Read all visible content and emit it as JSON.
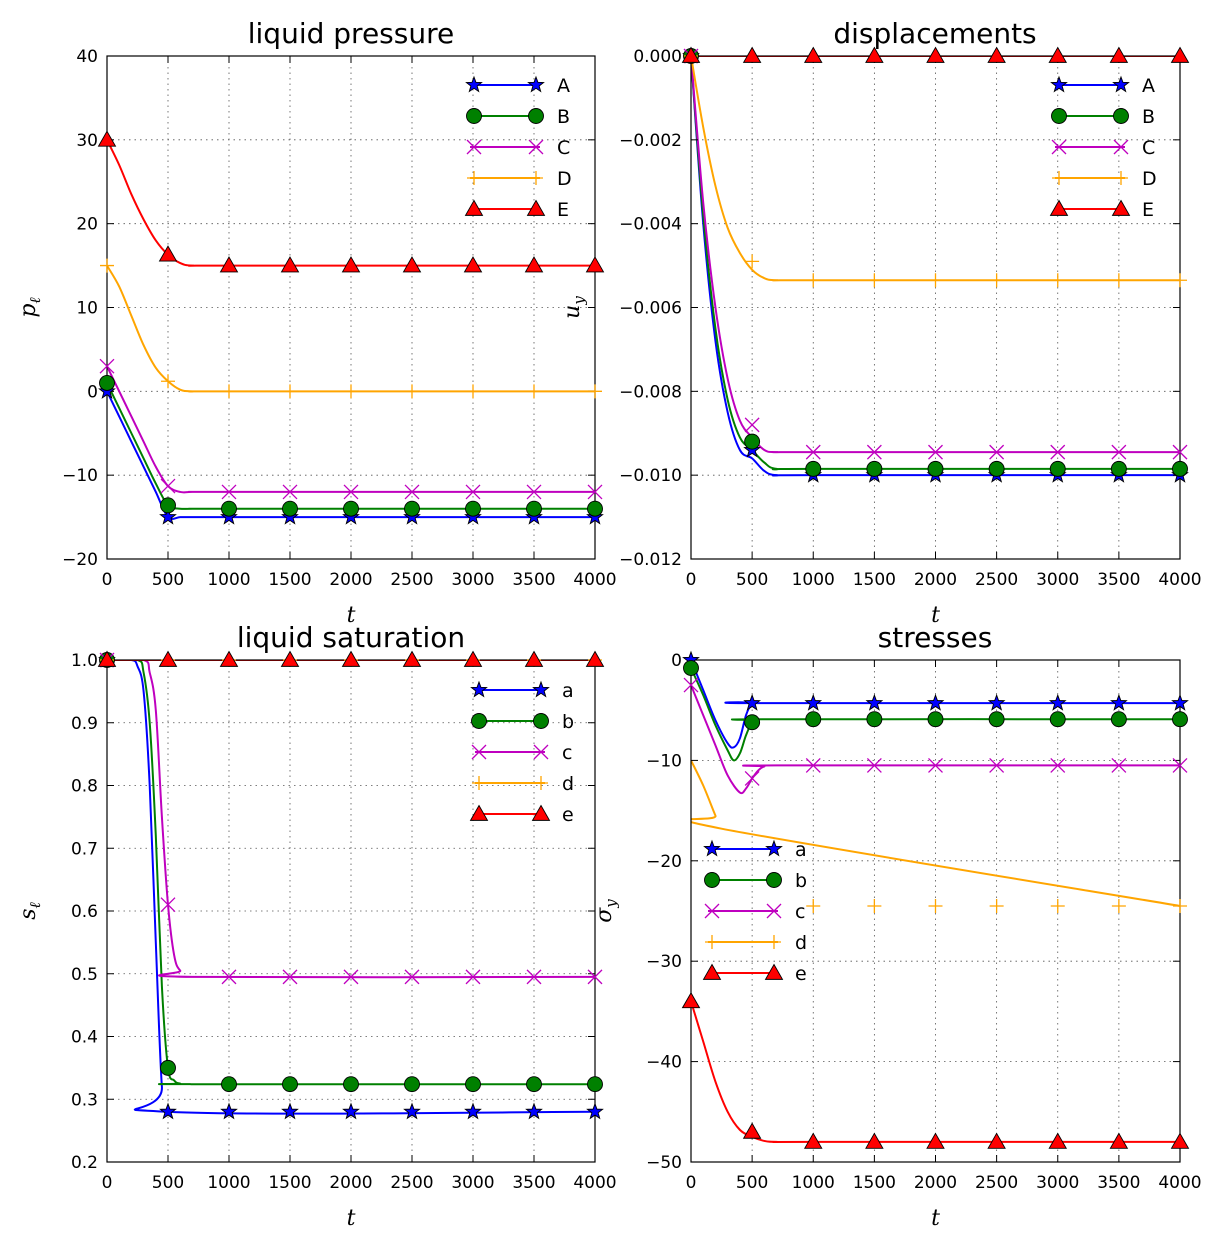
{
  "chart_data": [
    {
      "type": "line",
      "title": "liquid pressure",
      "xlabel": "t",
      "ylabel": "p",
      "ylabel_sub": "ℓ",
      "xlim": [
        0,
        4000
      ],
      "ylim": [
        -20,
        40
      ],
      "xticks": [
        0,
        500,
        1000,
        1500,
        2000,
        2500,
        3000,
        3500,
        4000
      ],
      "yticks": [
        -20,
        -10,
        0,
        10,
        20,
        30,
        40
      ],
      "ytick_labels": [
        "−20",
        "−10",
        "0",
        "10",
        "20",
        "30",
        "40"
      ],
      "grid": true,
      "legend_position": "upper-right",
      "series": [
        {
          "name": "A",
          "color": "#0000ff",
          "marker": "star",
          "x": [
            0,
            100,
            200,
            300,
            400,
            500,
            600,
            700,
            800,
            1000,
            4000
          ],
          "y": [
            0,
            -3,
            -6,
            -9,
            -12,
            -15,
            -15,
            -15,
            -15,
            -15,
            -15
          ],
          "marker_x": [
            0,
            500,
            1000,
            1500,
            2000,
            2500,
            3000,
            3500,
            4000
          ],
          "marker_y": [
            0,
            -15,
            -15,
            -15,
            -15,
            -15,
            -15,
            -15,
            -15
          ]
        },
        {
          "name": "B",
          "color": "#008000",
          "marker": "circle",
          "x": [
            0,
            100,
            200,
            300,
            400,
            500,
            600,
            700,
            1000,
            4000
          ],
          "y": [
            1,
            -2,
            -5,
            -8,
            -11,
            -13.6,
            -14,
            -14,
            -14,
            -14
          ],
          "marker_x": [
            0,
            500,
            1000,
            1500,
            2000,
            2500,
            3000,
            3500,
            4000
          ],
          "marker_y": [
            1,
            -13.6,
            -14,
            -14,
            -14,
            -14,
            -14,
            -14,
            -14
          ]
        },
        {
          "name": "C",
          "color": "#bf00bf",
          "marker": "x",
          "x": [
            0,
            100,
            200,
            300,
            400,
            500,
            600,
            700,
            1000,
            4000
          ],
          "y": [
            3,
            0,
            -3,
            -6,
            -9,
            -11.3,
            -12,
            -12,
            -12,
            -12
          ],
          "marker_x": [
            0,
            500,
            1000,
            1500,
            2000,
            2500,
            3000,
            3500,
            4000
          ],
          "marker_y": [
            3,
            -11.3,
            -12,
            -12,
            -12,
            -12,
            -12,
            -12,
            -12
          ]
        },
        {
          "name": "D",
          "color": "#ffa500",
          "marker": "plus",
          "x": [
            0,
            100,
            200,
            300,
            400,
            500,
            600,
            700,
            1000,
            4000
          ],
          "y": [
            15,
            12.5,
            9,
            5.5,
            2.8,
            1.2,
            0.2,
            0,
            0,
            0
          ],
          "marker_x": [
            0,
            500,
            1000,
            1500,
            2000,
            2500,
            3000,
            3500,
            4000
          ],
          "marker_y": [
            15,
            1.2,
            0,
            0,
            0,
            0,
            0,
            0,
            0
          ]
        },
        {
          "name": "E",
          "color": "#ff0000",
          "marker": "triangle",
          "x": [
            0,
            100,
            200,
            300,
            400,
            500,
            600,
            700,
            1000,
            4000
          ],
          "y": [
            30,
            27,
            23.5,
            20.5,
            18,
            16.3,
            15.3,
            15,
            15,
            15
          ],
          "marker_x": [
            0,
            500,
            1000,
            1500,
            2000,
            2500,
            3000,
            3500,
            4000
          ],
          "marker_y": [
            30,
            16.3,
            15,
            15,
            15,
            15,
            15,
            15,
            15
          ]
        }
      ]
    },
    {
      "type": "line",
      "title": "displacements",
      "xlabel": "t",
      "ylabel": "u",
      "ylabel_sub": "y",
      "xlim": [
        0,
        4000
      ],
      "ylim": [
        -0.012,
        0.0
      ],
      "xticks": [
        0,
        500,
        1000,
        1500,
        2000,
        2500,
        3000,
        3500,
        4000
      ],
      "yticks": [
        -0.012,
        -0.01,
        -0.008,
        -0.006,
        -0.004,
        -0.002,
        0.0
      ],
      "ytick_labels": [
        "−0.012",
        "−0.010",
        "−0.008",
        "−0.006",
        "−0.004",
        "−0.002",
        "0.000"
      ],
      "grid": true,
      "legend_position": "upper-right",
      "series": [
        {
          "name": "A",
          "color": "#0000ff",
          "marker": "star",
          "x": [
            0,
            100,
            200,
            300,
            400,
            500,
            600,
            700,
            1000,
            4000
          ],
          "y": [
            0,
            -0.004,
            -0.0068,
            -0.0085,
            -0.0094,
            -0.0096,
            -0.0099,
            -0.01,
            -0.01,
            -0.01
          ],
          "marker_x": [
            0,
            500,
            1000,
            1500,
            2000,
            2500,
            3000,
            3500,
            4000
          ],
          "marker_y": [
            0,
            -0.0094,
            -0.01,
            -0.01,
            -0.01,
            -0.01,
            -0.01,
            -0.01,
            -0.01
          ]
        },
        {
          "name": "B",
          "color": "#008000",
          "marker": "circle",
          "x": [
            0,
            100,
            200,
            300,
            400,
            500,
            600,
            700,
            1000,
            4000
          ],
          "y": [
            0,
            -0.0038,
            -0.0065,
            -0.0082,
            -0.0091,
            -0.0094,
            -0.0097,
            -0.00985,
            -0.00985,
            -0.00985
          ],
          "marker_x": [
            0,
            500,
            1000,
            1500,
            2000,
            2500,
            3000,
            3500,
            4000
          ],
          "marker_y": [
            0,
            -0.0092,
            -0.00985,
            -0.00985,
            -0.00985,
            -0.00985,
            -0.00985,
            -0.00985,
            -0.00985
          ]
        },
        {
          "name": "C",
          "color": "#bf00bf",
          "marker": "x",
          "x": [
            0,
            100,
            200,
            300,
            400,
            500,
            600,
            700,
            1000,
            4000
          ],
          "y": [
            0,
            -0.0035,
            -0.006,
            -0.0077,
            -0.0087,
            -0.0091,
            -0.0094,
            -0.00945,
            -0.00945,
            -0.00945
          ],
          "marker_x": [
            0,
            500,
            1000,
            1500,
            2000,
            2500,
            3000,
            3500,
            4000
          ],
          "marker_y": [
            0,
            -0.0088,
            -0.00945,
            -0.00945,
            -0.00945,
            -0.00945,
            -0.00945,
            -0.00945,
            -0.00945
          ]
        },
        {
          "name": "D",
          "color": "#ffa500",
          "marker": "plus",
          "x": [
            0,
            100,
            200,
            300,
            400,
            500,
            600,
            700,
            1000,
            4000
          ],
          "y": [
            0,
            -0.0017,
            -0.0031,
            -0.0041,
            -0.0047,
            -0.0051,
            -0.0053,
            -0.00535,
            -0.00535,
            -0.00535
          ],
          "marker_x": [
            0,
            500,
            1000,
            1500,
            2000,
            2500,
            3000,
            3500,
            4000
          ],
          "marker_y": [
            0,
            -0.0049,
            -0.00535,
            -0.00535,
            -0.00535,
            -0.00535,
            -0.00535,
            -0.00535,
            -0.00535
          ]
        },
        {
          "name": "E",
          "color": "#ff0000",
          "marker": "triangle",
          "x": [
            0,
            4000
          ],
          "y": [
            0,
            0
          ],
          "marker_x": [
            0,
            500,
            1000,
            1500,
            2000,
            2500,
            3000,
            3500,
            4000
          ],
          "marker_y": [
            0,
            0,
            0,
            0,
            0,
            0,
            0,
            0,
            0
          ]
        }
      ]
    },
    {
      "type": "line",
      "title": "liquid saturation",
      "xlabel": "t",
      "ylabel": "s",
      "ylabel_sub": "ℓ",
      "xlim": [
        0,
        4000
      ],
      "ylim": [
        0.2,
        1.0
      ],
      "xticks": [
        0,
        500,
        1000,
        1500,
        2000,
        2500,
        3000,
        3500,
        4000
      ],
      "yticks": [
        0.2,
        0.3,
        0.4,
        0.5,
        0.6,
        0.7,
        0.8,
        0.9,
        1.0
      ],
      "ytick_labels": [
        "0.2",
        "0.3",
        "0.4",
        "0.5",
        "0.6",
        "0.7",
        "0.8",
        "0.9",
        "1.0"
      ],
      "grid": true,
      "legend_position": "upper-right",
      "series": [
        {
          "name": "a",
          "color": "#0000ff",
          "marker": "star",
          "x": [
            0,
            200,
            250,
            300,
            350,
            400,
            450,
            500,
            4000
          ],
          "y": [
            1,
            1,
            0.99,
            0.95,
            0.8,
            0.55,
            0.32,
            0.28,
            0.28
          ],
          "marker_x": [
            0,
            500,
            1000,
            1500,
            2000,
            2500,
            3000,
            3500,
            4000
          ],
          "marker_y": [
            1,
            0.28,
            0.28,
            0.28,
            0.28,
            0.28,
            0.28,
            0.28,
            0.28
          ]
        },
        {
          "name": "b",
          "color": "#008000",
          "marker": "circle",
          "x": [
            0,
            250,
            300,
            350,
            400,
            450,
            500,
            550,
            600,
            700,
            4000
          ],
          "y": [
            1,
            1,
            0.98,
            0.9,
            0.72,
            0.48,
            0.35,
            0.33,
            0.325,
            0.324,
            0.324
          ],
          "marker_x": [
            0,
            500,
            1000,
            1500,
            2000,
            2500,
            3000,
            3500,
            4000
          ],
          "marker_y": [
            1,
            0.35,
            0.324,
            0.324,
            0.324,
            0.324,
            0.324,
            0.324,
            0.324
          ]
        },
        {
          "name": "c",
          "color": "#bf00bf",
          "marker": "x",
          "x": [
            0,
            300,
            350,
            400,
            450,
            500,
            550,
            600,
            700,
            4000
          ],
          "y": [
            1,
            1,
            0.98,
            0.92,
            0.75,
            0.61,
            0.53,
            0.505,
            0.495,
            0.495
          ],
          "marker_x": [
            0,
            500,
            1000,
            1500,
            2000,
            2500,
            3000,
            3500,
            4000
          ],
          "marker_y": [
            1,
            0.61,
            0.495,
            0.495,
            0.495,
            0.495,
            0.495,
            0.495,
            0.495
          ]
        },
        {
          "name": "d",
          "color": "#ffa500",
          "marker": "plus",
          "x": [
            0,
            4000
          ],
          "y": [
            1,
            1
          ],
          "marker_x": [
            0,
            500,
            1000,
            1500,
            2000,
            2500,
            3000,
            3500,
            4000
          ],
          "marker_y": [
            1,
            1,
            1,
            1,
            1,
            1,
            1,
            1,
            1
          ]
        },
        {
          "name": "e",
          "color": "#ff0000",
          "marker": "triangle",
          "x": [
            0,
            4000
          ],
          "y": [
            1,
            1
          ],
          "marker_x": [
            0,
            500,
            1000,
            1500,
            2000,
            2500,
            3000,
            3500,
            4000
          ],
          "marker_y": [
            1,
            1,
            1,
            1,
            1,
            1,
            1,
            1,
            1
          ]
        }
      ]
    },
    {
      "type": "line",
      "title": "stresses",
      "xlabel": "t",
      "ylabel": "σ",
      "ylabel_sub": "y",
      "xlim": [
        0,
        4000
      ],
      "ylim": [
        -50,
        0
      ],
      "xticks": [
        0,
        500,
        1000,
        1500,
        2000,
        2500,
        3000,
        3500,
        4000
      ],
      "yticks": [
        -50,
        -40,
        -30,
        -20,
        -10,
        0
      ],
      "ytick_labels": [
        "−50",
        "−40",
        "−30",
        "−20",
        "−10",
        "0"
      ],
      "grid": true,
      "legend_position": "center-left",
      "series": [
        {
          "name": "a",
          "color": "#0000ff",
          "marker": "star",
          "x": [
            0,
            100,
            200,
            300,
            350,
            400,
            450,
            500,
            550,
            4000
          ],
          "y": [
            0,
            -3,
            -6,
            -8.3,
            -8.7,
            -7.8,
            -5.5,
            -4.3,
            -4.3,
            -4.3
          ],
          "marker_x": [
            0,
            500,
            1000,
            1500,
            2000,
            2500,
            3000,
            3500,
            4000
          ],
          "marker_y": [
            0,
            -4.3,
            -4.3,
            -4.3,
            -4.3,
            -4.3,
            -4.3,
            -4.3,
            -4.3
          ]
        },
        {
          "name": "b",
          "color": "#008000",
          "marker": "circle",
          "x": [
            0,
            100,
            200,
            300,
            350,
            400,
            450,
            500,
            550,
            600,
            4000
          ],
          "y": [
            -0.8,
            -3.5,
            -6.5,
            -9,
            -10,
            -9.3,
            -7.5,
            -6.2,
            -6,
            -5.9,
            -5.9
          ],
          "marker_x": [
            0,
            500,
            1000,
            1500,
            2000,
            2500,
            3000,
            3500,
            4000
          ],
          "marker_y": [
            -0.8,
            -6.2,
            -5.9,
            -5.9,
            -5.9,
            -5.9,
            -5.9,
            -5.9,
            -5.9
          ]
        },
        {
          "name": "c",
          "color": "#bf00bf",
          "marker": "x",
          "x": [
            0,
            100,
            200,
            300,
            400,
            450,
            500,
            550,
            600,
            700,
            4000
          ],
          "y": [
            -2.5,
            -5.5,
            -8.5,
            -11.5,
            -13.2,
            -12.8,
            -11.8,
            -11,
            -10.6,
            -10.5,
            -10.5
          ],
          "marker_x": [
            0,
            500,
            1000,
            1500,
            2000,
            2500,
            3000,
            3500,
            4000
          ],
          "marker_y": [
            -2.5,
            -11.8,
            -10.5,
            -10.5,
            -10.5,
            -10.5,
            -10.5,
            -10.5,
            -10.5
          ]
        },
        {
          "name": "d",
          "color": "#ffa500",
          "marker": "plus",
          "x": [
            0,
            100,
            200,
            250,
            4000
          ],
          "y": [
            -10,
            -12.5,
            -15.5,
            -16.8,
            -24.5
          ],
          "marker_x": [
            1000,
            1500,
            2000,
            2500,
            3000,
            3500,
            4000
          ],
          "marker_y": [
            -24.5,
            -24.5,
            -24.5,
            -24.5,
            -24.5,
            -24.5,
            -24.5
          ]
        },
        {
          "name": "e",
          "color": "#ff0000",
          "marker": "triangle",
          "x": [
            0,
            100,
            200,
            300,
            400,
            500,
            600,
            700,
            1000,
            4000
          ],
          "y": [
            -34,
            -38,
            -42,
            -45,
            -46.8,
            -47.5,
            -47.9,
            -48,
            -48,
            -48
          ],
          "marker_x": [
            0,
            500,
            1000,
            1500,
            2000,
            2500,
            3000,
            3500,
            4000
          ],
          "marker_y": [
            -34,
            -47,
            -48,
            -48,
            -48,
            -48,
            -48,
            -48,
            -48
          ]
        }
      ]
    }
  ]
}
